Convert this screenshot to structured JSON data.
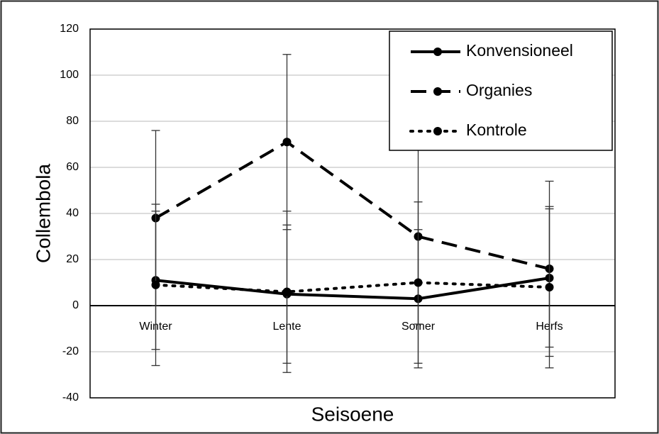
{
  "chart_data": {
    "type": "line",
    "x_label": "Seisoene",
    "y_label": "Collembola",
    "categories": [
      "Winter",
      "Lente",
      "Somer",
      "Herfs"
    ],
    "series": [
      {
        "name": "Konvensioneel",
        "color": "#000000",
        "style": "solid",
        "values": [
          11,
          5,
          3,
          12
        ],
        "errors": [
          30,
          30,
          30,
          30
        ]
      },
      {
        "name": "Organies",
        "color": "#000000",
        "style": "dashed",
        "values": [
          38,
          71,
          30,
          16
        ],
        "errors": [
          38,
          38,
          38,
          38
        ]
      },
      {
        "name": "Kontrole",
        "color": "#000000",
        "style": "dotted",
        "values": [
          9,
          6,
          10,
          8
        ],
        "errors": [
          35,
          35,
          35,
          35
        ]
      }
    ],
    "ylim": [
      -40,
      120
    ],
    "yticks": [
      -40,
      -20,
      0,
      20,
      40,
      60,
      80,
      100,
      120
    ],
    "grid": true,
    "legend": "upper right"
  }
}
